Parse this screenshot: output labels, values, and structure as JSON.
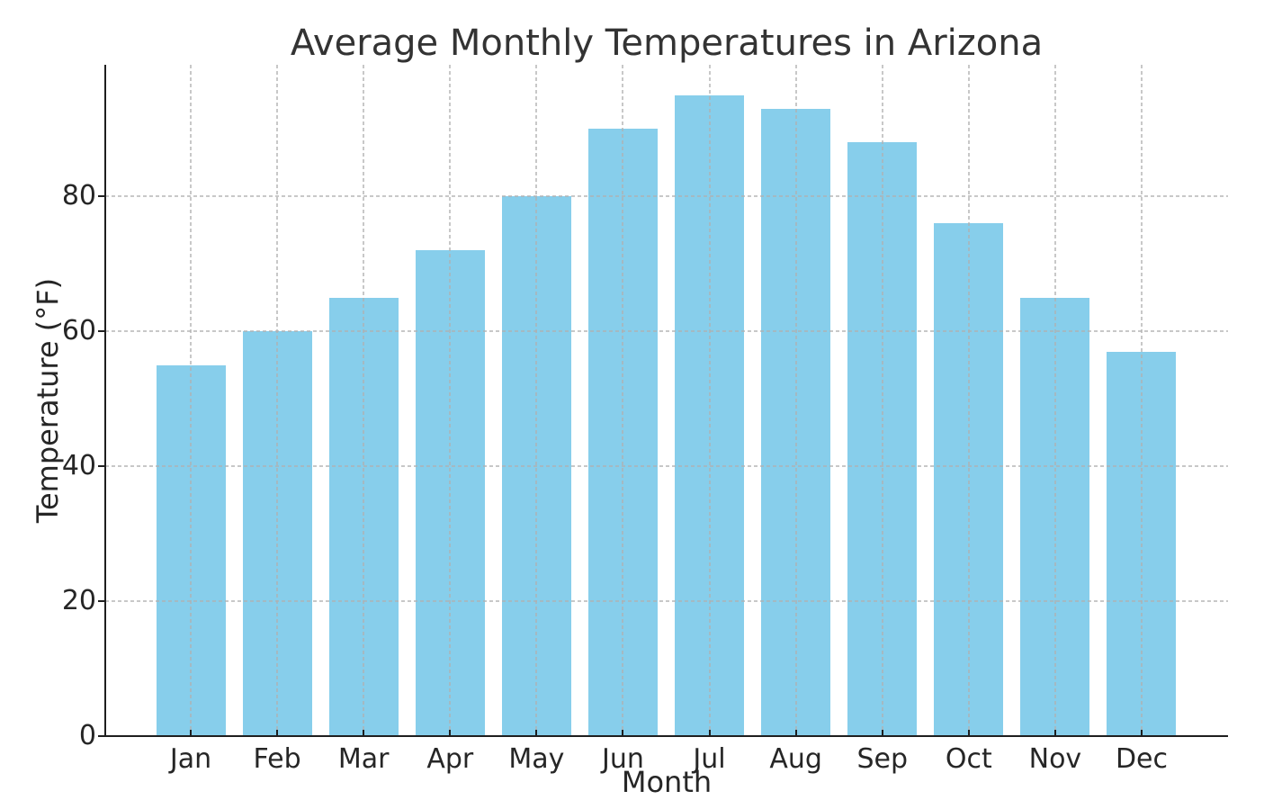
{
  "chart_data": {
    "type": "bar",
    "title": "Average Monthly Temperatures in Arizona",
    "xlabel": "Month",
    "ylabel": "Temperature (°F)",
    "categories": [
      "Jan",
      "Feb",
      "Mar",
      "Apr",
      "May",
      "Jun",
      "Jul",
      "Aug",
      "Sep",
      "Oct",
      "Nov",
      "Dec"
    ],
    "values": [
      55,
      60,
      65,
      72,
      80,
      90,
      95,
      93,
      88,
      76,
      65,
      57
    ],
    "yticks": [
      0,
      20,
      40,
      60,
      80
    ],
    "ylim": [
      0,
      99.5
    ],
    "grid": "both-axes, dashed, drawn over bars",
    "legend_position": "none",
    "spines": "left and bottom only"
  },
  "colors": {
    "bar": "#87CEEB",
    "axis": "#1f1f1f",
    "text": "#262626",
    "title_text": "#333333",
    "grid": "#b0b0b0",
    "background": "#ffffff"
  }
}
